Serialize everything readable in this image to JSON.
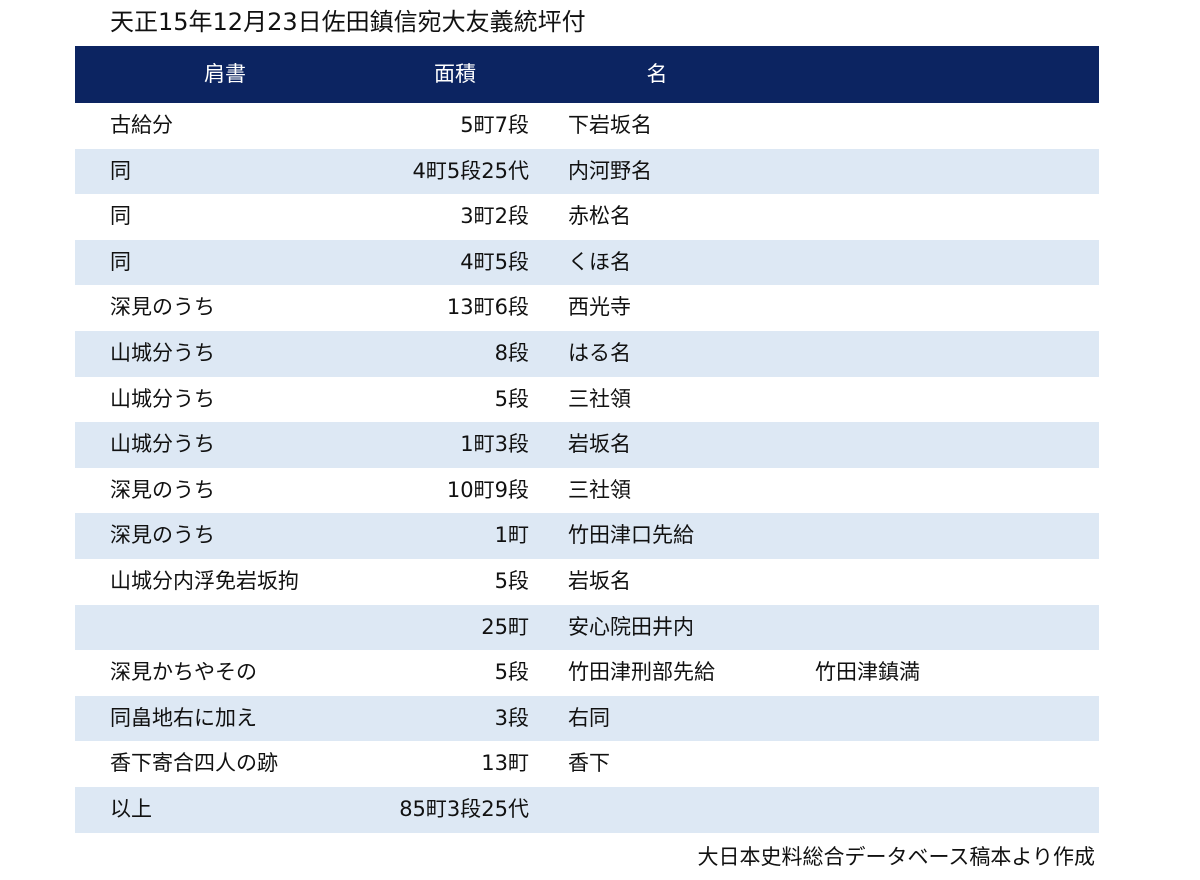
{
  "title": "天正15年12月23日佐田鎮信宛大友義統坪付",
  "table": {
    "headers": [
      "肩書",
      "面積",
      "名"
    ],
    "rows": [
      {
        "role": "古給分",
        "area": "5町7段",
        "name": "下岩坂名"
      },
      {
        "role": "同",
        "area": "4町5段25代",
        "name": "内河野名"
      },
      {
        "role": "同",
        "area": "3町2段",
        "name": "赤松名"
      },
      {
        "role": "同",
        "area": "4町5段",
        "name": "くほ名"
      },
      {
        "role": "深見のうち",
        "area": "13町6段",
        "name": "西光寺"
      },
      {
        "role": "山城分うち",
        "area": "8段",
        "name": "はる名"
      },
      {
        "role": "山城分うち",
        "area": "5段",
        "name": "三社領"
      },
      {
        "role": "山城分うち",
        "area": "1町3段",
        "name": "岩坂名"
      },
      {
        "role": "深見のうち",
        "area": "10町9段",
        "name": "三社領"
      },
      {
        "role": "深見のうち",
        "area": "1町",
        "name": "竹田津口先給"
      },
      {
        "role": "山城分内浮免岩坂拘",
        "area": "5段",
        "name": "岩坂名"
      },
      {
        "area": "25町",
        "name": "安心院田井内"
      },
      {
        "role": "深見かちやその",
        "area": "5段",
        "name": "竹田津刑部先給",
        "extra": "竹田津鎮満"
      },
      {
        "role": "同畠地右に加え",
        "area": "3段",
        "name": "右同"
      },
      {
        "role": "香下寄合四人の跡",
        "area": "13町",
        "name": "香下"
      },
      {
        "role": "以上",
        "area": "85町3段25代"
      }
    ]
  },
  "footer": "大日本史料総合データベース稿本より作成"
}
